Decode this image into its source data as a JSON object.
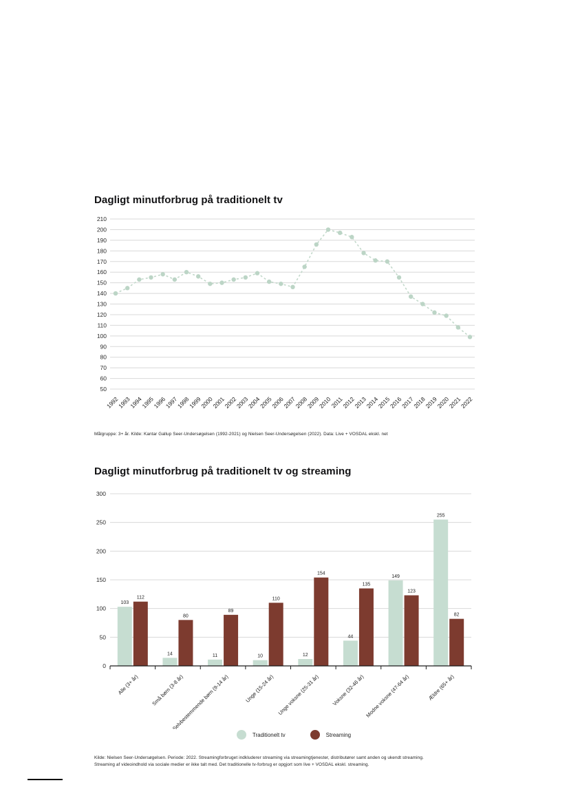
{
  "page_titles": {
    "line_chart_title": "Dagligt minutforbrug på traditionelt tv",
    "bar_chart_title": "Dagligt minutforbrug på traditionelt tv og streaming"
  },
  "chart_data": [
    {
      "type": "line",
      "title": "Dagligt minutforbrug på traditionelt tv",
      "x": [
        1992,
        1993,
        1994,
        1995,
        1996,
        1997,
        1998,
        1999,
        2000,
        2001,
        2002,
        2003,
        2004,
        2005,
        2006,
        2007,
        2008,
        2009,
        2010,
        2011,
        2012,
        2013,
        2014,
        2015,
        2016,
        2017,
        2018,
        2019,
        2020,
        2021,
        2022
      ],
      "values": [
        140,
        145,
        153,
        155,
        158,
        153,
        160,
        156,
        149,
        150,
        153,
        155,
        159,
        151,
        149,
        146,
        165,
        186,
        200,
        197,
        193,
        178,
        171,
        170,
        155,
        137,
        130,
        122,
        119,
        108,
        99
      ],
      "ylim": [
        50,
        210
      ],
      "ytick_step": 10,
      "grid": true,
      "line_style": "dashed",
      "marker": "circle",
      "line_color": "#c2d8ca",
      "marker_color": "#bcd5c6",
      "footnote": "Målgruppe: 3+ år. Kilde: Kantar Gallup Seer-Undersøgelsen (1992-2021) og Nielsen Seer-Undersøgelsen (2022). Data: Live + VOSDAL ekskl. net"
    },
    {
      "type": "bar",
      "title": "Dagligt minutforbrug på traditionelt tv og streaming",
      "categories": [
        "Alle (3+ år)",
        "Små børn (3-8 år)",
        "Selvbestemmende børn (9-14 år)",
        "Unge (15-24 år)",
        "Unge voksne (25-31 år)",
        "Voksne (32-46 år)",
        "Modne voksne (47-64 år)",
        "Ældre (65+ år)"
      ],
      "series": [
        {
          "name": "Traditionelt tv",
          "color": "#c6ddd1",
          "values": [
            103,
            14,
            11,
            10,
            12,
            44,
            149,
            255
          ]
        },
        {
          "name": "Streaming",
          "color": "#7d3b2f",
          "values": [
            112,
            80,
            89,
            110,
            154,
            135,
            123,
            82
          ]
        }
      ],
      "ylim": [
        0,
        300
      ],
      "ytick_step": 50,
      "grid": true,
      "legend_position": "bottom",
      "footnote_lines": [
        "Kilde: Nielsen Seer-Undersøgelsen. Periode: 2022. Streamingforbruget indkluderer streaming via streamingtjenester, distributører samt anden og ukendt streaming.",
        "Streaming af videoindhold via sociale medier er ikke talt med. Det traditionelle tv-forbrug er opgjort som live + VOSDAL ekskl. streaming."
      ]
    }
  ],
  "style_colors": {
    "gridline": "#d8d8d8",
    "axis": "#1a1a1a",
    "tick_label": "#2b2b2b"
  }
}
